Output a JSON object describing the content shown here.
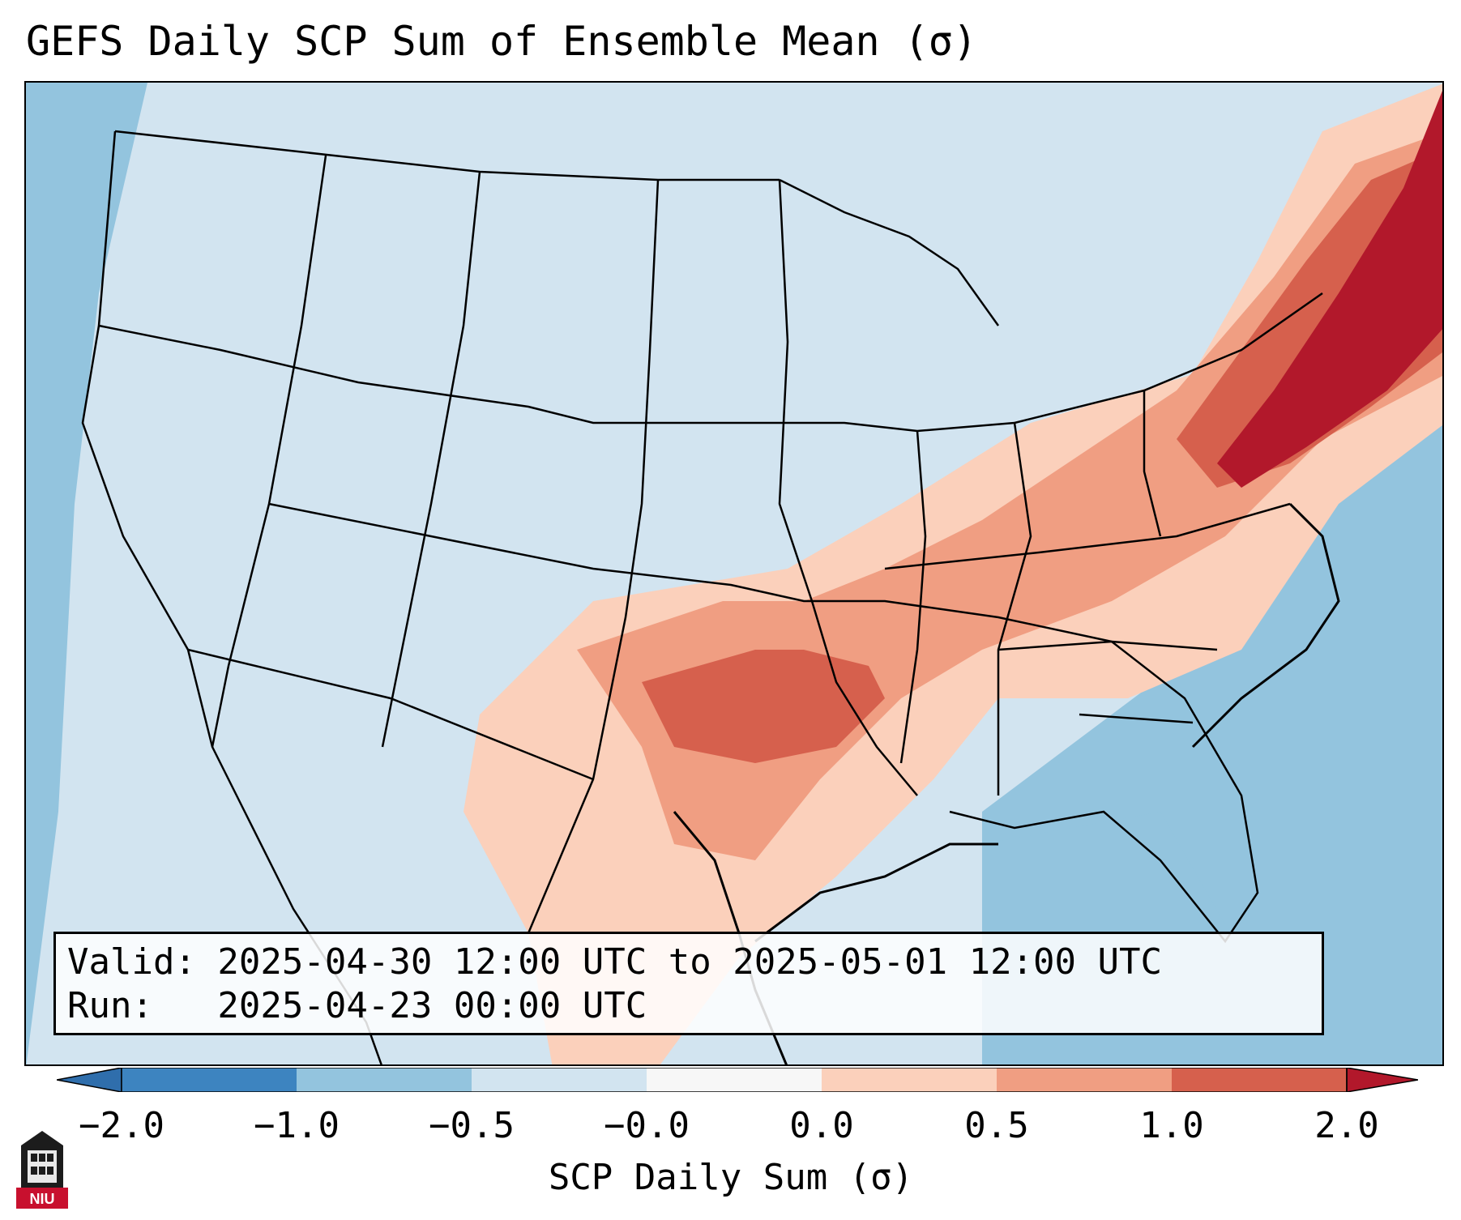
{
  "title": "GEFS Daily SCP Sum of Ensemble Mean (σ)",
  "info_box": {
    "valid_line": "Valid: 2025-04-30 12:00 UTC to 2025-05-01 12:00 UTC",
    "run_line": "Run:   2025-04-23 00:00 UTC"
  },
  "colorbar": {
    "label": "SCP Daily Sum (σ)",
    "ticks": [
      "−2.0",
      "−1.0",
      "−0.5",
      "−0.0",
      "0.0",
      "0.5",
      "1.0",
      "2.0"
    ],
    "colors": [
      "#3d84c0",
      "#93c4de",
      "#d2e4f0",
      "#f7f7f7",
      "#fbd0bb",
      "#f09e82",
      "#d6604d",
      "#b2182b"
    ],
    "extend": "both"
  },
  "map": {
    "region": "Contiguous United States",
    "ocean_color": "#93c4de",
    "land_color": "#d2e4f0",
    "high_region_colors": [
      "#fbd0bb",
      "#f09e82",
      "#d6604d",
      "#b2182b"
    ]
  },
  "logo": {
    "text": "NIU",
    "icon": "niu-building-logo-icon"
  }
}
